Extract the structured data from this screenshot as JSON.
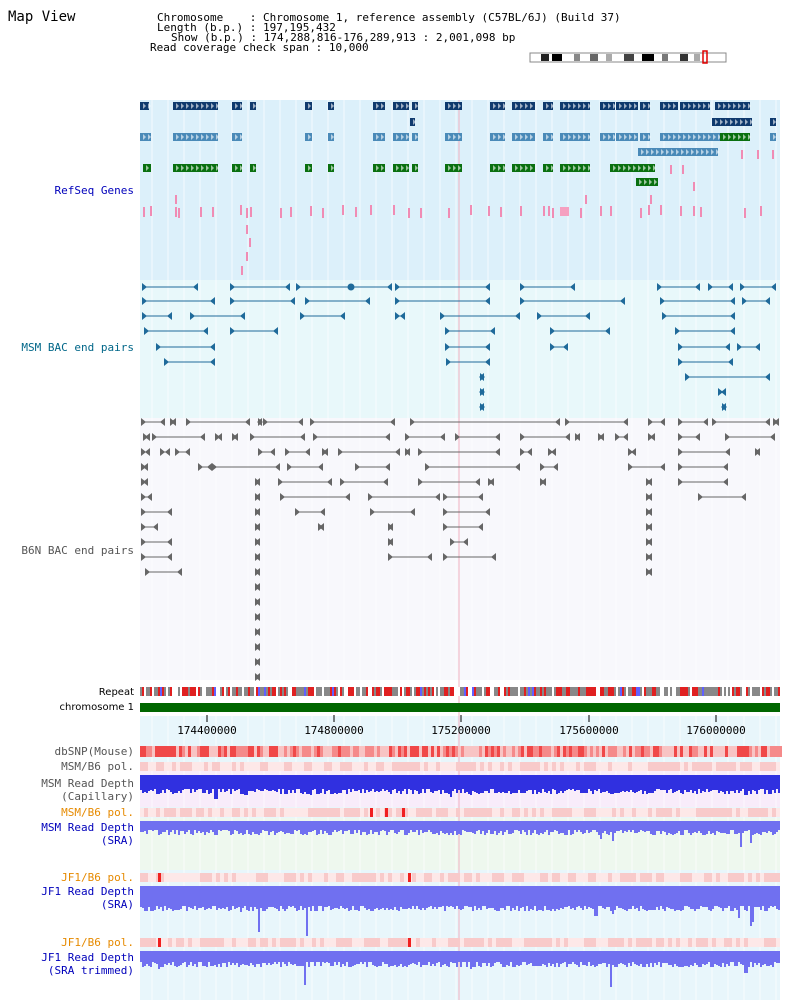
{
  "page": {
    "title": "Map View"
  },
  "info": {
    "chromosome_key": "Chromosome",
    "chromosome_value": "Chromosome 1, reference assembly (C57BL/6J) (Build 37)",
    "length_key": "Length (b.p.)",
    "length_value": "197,195,432",
    "show_key": "Show (b.p.)",
    "show_value": "174,288,816-176,289,913 : 2,001,098 bp",
    "span_key": "Read coverage check span",
    "span_value": "10,000"
  },
  "tracks": {
    "refseq": "RefSeq Genes",
    "msm_bac": "MSM BAC end pairs",
    "b6n_bac": "B6N BAC end pairs",
    "repeat": "Repeat",
    "chromosome": "chromosome 1",
    "dbsnp": "dbSNP(Mouse)",
    "msm_pol_1": "MSM/B6 pol.",
    "msm_depth_cap_1": "MSM Read Depth",
    "msm_depth_cap_2": "(Capillary)",
    "msm_pol_2": "MSM/B6 pol.",
    "msm_depth_sra_1": "MSM Read Depth",
    "msm_depth_sra_2": "(SRA)",
    "jf1_pol_1": "JF1/B6 pol.",
    "jf1_depth_sra_1": "JF1 Read Depth",
    "jf1_depth_sra_2": "(SRA)",
    "jf1_pol_2": "JF1/B6 pol.",
    "jf1_depth_trim_1": "JF1 Read Depth",
    "jf1_depth_trim_2": "(SRA trimmed)"
  },
  "axis": {
    "ticks": [
      "174400000",
      "174800000",
      "175200000",
      "175600000",
      "176000000"
    ]
  },
  "colors": {
    "refseq_bg": "#dcf0fa",
    "bac_bg": "#e8f8fa",
    "b6n_bg": "#f8f8fc",
    "gene_dark": "#0f3a6e",
    "gene_mid": "#4a8ab8",
    "gene_green": "#0a7010",
    "bac_blue": "#1f6a9a",
    "bac_grey": "#666666",
    "chromosome_bar": "#006600",
    "depth_blue": "#3030e0",
    "depth_light": "#7070f0",
    "label_blue": "#0000bb",
    "label_teal": "#006688",
    "label_grey": "#555555",
    "label_orange": "#e68a00"
  }
}
